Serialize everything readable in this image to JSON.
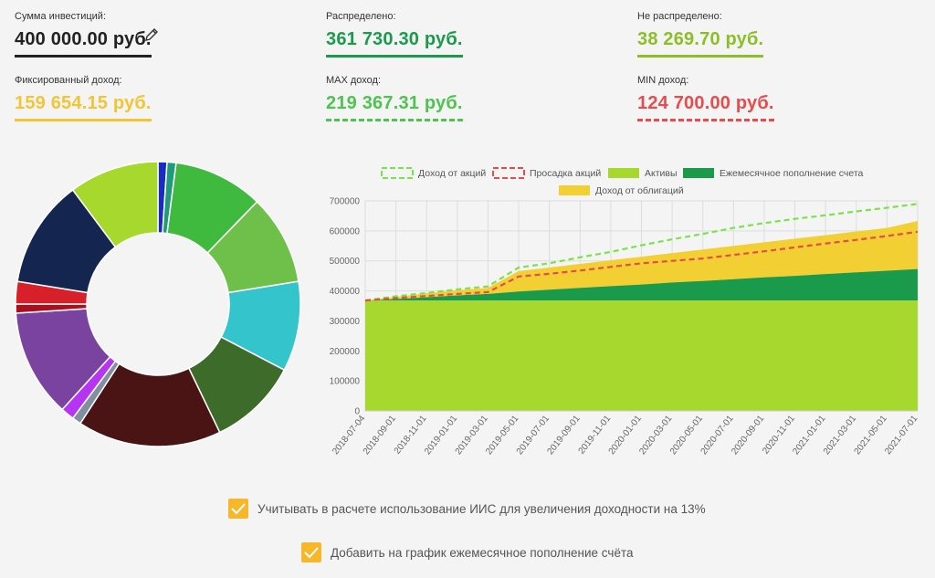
{
  "stats": [
    {
      "label": "Сумма инвестиций:",
      "value": "400 000.00 руб.",
      "color": "#222222",
      "underline": "solid"
    },
    {
      "label": "Распределено:",
      "value": "361 730.30 руб.",
      "color": "#1a9b4b",
      "underline": "solid"
    },
    {
      "label": "Не распределено:",
      "value": "38 269.70 руб.",
      "color": "#8cbf26",
      "underline": "solid"
    },
    {
      "label": "Фиксированный доход:",
      "value": "159 654.15 руб.",
      "color": "#f2c534",
      "underline": "solid"
    },
    {
      "label": "MAX доход:",
      "value": "219 367.31 руб.",
      "color": "#4ec34e",
      "underline": "dashed"
    },
    {
      "label": "MIN доход:",
      "value": "124 700.00 руб.",
      "color": "#e84b4b",
      "underline": "dashed"
    }
  ],
  "edit_icon": "pencil-icon",
  "chart_data": [
    {
      "type": "pie",
      "variant": "donut",
      "slices": [
        {
          "value": 1.0,
          "color": "#1a2bbf"
        },
        {
          "value": 1.0,
          "color": "#1e9b7a"
        },
        {
          "value": 10.0,
          "color": "#3fba3f"
        },
        {
          "value": 10.0,
          "color": "#6fc04a"
        },
        {
          "value": 10.0,
          "color": "#33c4cc"
        },
        {
          "value": 10.0,
          "color": "#3d6b29"
        },
        {
          "value": 16.0,
          "color": "#4a1414"
        },
        {
          "value": 1.0,
          "color": "#8090a0"
        },
        {
          "value": 1.5,
          "color": "#b535f2"
        },
        {
          "value": 12.0,
          "color": "#7b43a0"
        },
        {
          "value": 1.0,
          "color": "#a8101e"
        },
        {
          "value": 2.5,
          "color": "#d8202a"
        },
        {
          "value": 12.0,
          "color": "#142650"
        },
        {
          "value": 10.0,
          "color": "#a6d82e"
        }
      ]
    },
    {
      "type": "area",
      "legend": [
        {
          "name": "Доход от акций",
          "style": "dashed",
          "color": "#7be34a"
        },
        {
          "name": "Просадка акций",
          "style": "dashed",
          "color": "#e84b4b"
        },
        {
          "name": "Активы",
          "style": "fill",
          "color": "#a6d82e"
        },
        {
          "name": "Ежемесячное пополнение счета",
          "style": "fill",
          "color": "#1a9b4b"
        },
        {
          "name": "Доход от облигаций",
          "style": "fill",
          "color": "#f2d034"
        }
      ],
      "x": [
        "2018-07-04",
        "2018-09-01",
        "2018-11-01",
        "2019-01-01",
        "2019-03-01",
        "2019-05-01",
        "2019-07-01",
        "2019-09-01",
        "2019-11-01",
        "2020-01-01",
        "2020-03-01",
        "2020-05-01",
        "2020-07-01",
        "2020-09-01",
        "2020-11-01",
        "2021-01-01",
        "2021-03-01",
        "2021-05-01",
        "2021-07-01"
      ],
      "ylim": [
        0,
        700000
      ],
      "yticks": [
        "0",
        "100000",
        "200000",
        "300000",
        "400000",
        "500000",
        "600000",
        "700000"
      ],
      "series": [
        {
          "name": "Активы",
          "values": [
            368000,
            368000,
            368000,
            368000,
            368000,
            368000,
            368000,
            368000,
            368000,
            368000,
            368000,
            368000,
            368000,
            368000,
            368000,
            368000,
            368000,
            368000,
            368000
          ]
        },
        {
          "name": "Ежемесячное пополнение счета",
          "values": [
            368000,
            373000,
            379000,
            385000,
            390000,
            398000,
            404000,
            410000,
            416000,
            421000,
            428000,
            433000,
            439000,
            445000,
            450000,
            456000,
            462000,
            467000,
            473000
          ]
        },
        {
          "name": "Доход от облигаций",
          "values": [
            368000,
            380000,
            392000,
            402000,
            410000,
            466000,
            478000,
            490000,
            502000,
            514000,
            526000,
            538000,
            550000,
            562000,
            574000,
            586000,
            598000,
            610000,
            633000
          ]
        },
        {
          "name": "Доход от акций",
          "values": [
            368000,
            382000,
            393000,
            405000,
            415000,
            478000,
            492000,
            512000,
            530000,
            552000,
            572000,
            590000,
            610000,
            626000,
            640000,
            652000,
            665000,
            677000,
            690000
          ]
        },
        {
          "name": "Просадка акций",
          "values": [
            368000,
            376000,
            383000,
            390000,
            396000,
            448000,
            457000,
            468000,
            480000,
            492000,
            500000,
            508000,
            520000,
            532000,
            545000,
            558000,
            570000,
            583000,
            597000
          ]
        }
      ]
    }
  ],
  "options": [
    {
      "label": "Учитывать в расчете использование ИИС для увеличения доходности на 13%",
      "checked": true
    },
    {
      "label": "Добавить на график ежемесячное пополнение счёта",
      "checked": true
    }
  ]
}
